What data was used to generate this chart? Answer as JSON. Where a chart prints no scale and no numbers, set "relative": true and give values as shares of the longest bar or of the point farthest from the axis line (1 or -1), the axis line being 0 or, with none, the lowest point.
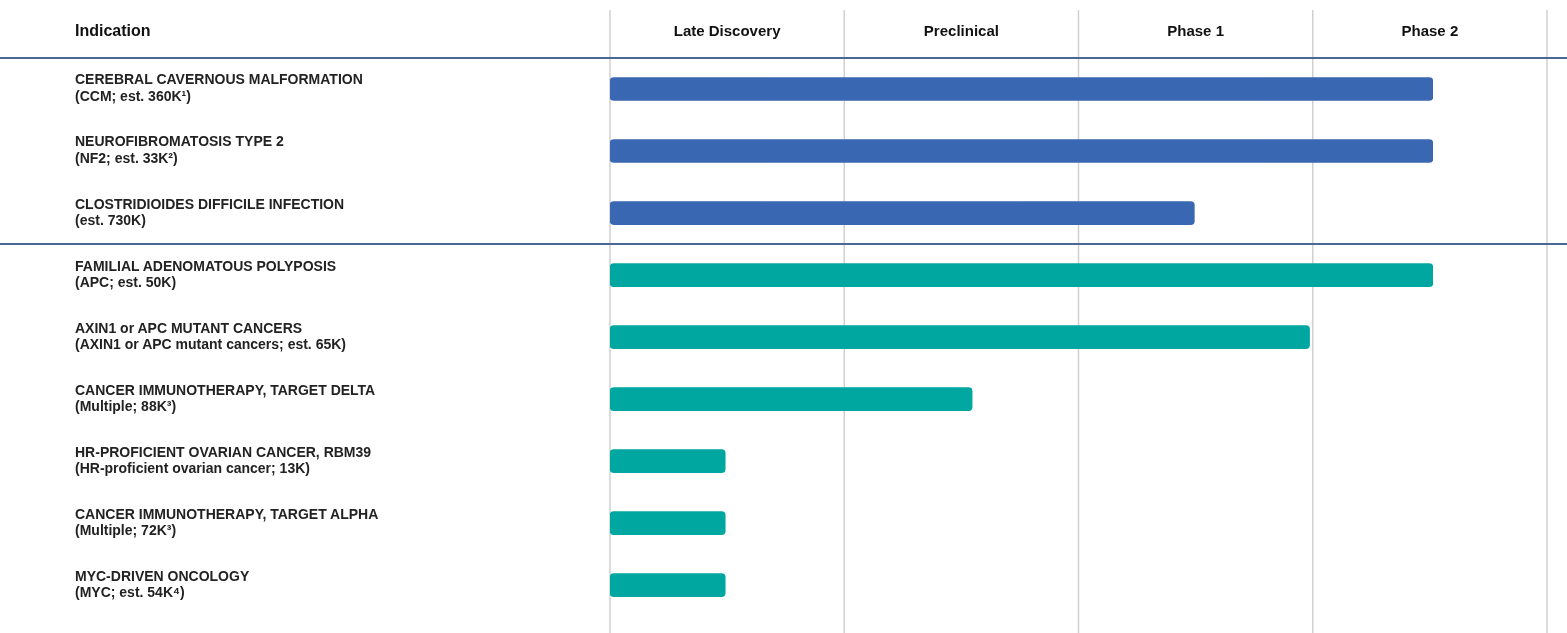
{
  "chart_data": {
    "type": "bar",
    "orientation": "horizontal",
    "relative": true,
    "ylabel": "Indication",
    "categories": [
      "CEREBRAL CAVERNOUS MALFORMATION\n(CCM; est. 360K¹)",
      "NEUROFIBROMATOSIS TYPE 2\n(NF2; est. 33K²)",
      "CLOSTRIDIOIDES DIFFICILE INFECTION\n(est. 730K)",
      "FAMILIAL ADENOMATOUS POLYPOSIS\n(APC; est. 50K)",
      "AXIN1 or APC MUTANT CANCERS\n(AXIN1 or APC mutant cancers; est. 65K)",
      "CANCER IMMUNOTHERAPY, TARGET DELTA\n(Multiple; 88K³)",
      "HR-PROFICIENT OVARIAN CANCER, RBM39\n(HR-proficient ovarian cancer; 13K)",
      "CANCER IMMUNOTHERAPY, TARGET ALPHA\n(Multiple; 72K³)",
      "MYC-DRIVEN ONCOLOGY\n(MYC; est. 54K⁴)"
    ],
    "values": [
      1,
      1,
      0.71,
      1,
      0.85,
      0.44,
      0.14,
      0.14,
      0.14
    ],
    "colors": [
      "#3a67b1",
      "#3a67b1",
      "#3a67b1",
      "#00a6a0",
      "#00a6a0",
      "#00a6a0",
      "#00a6a0",
      "#00a6a0",
      "#00a6a0"
    ],
    "annotations": [
      "Late Discovery",
      "Preclinical",
      "Phase 1",
      "Phase 2"
    ]
  }
}
